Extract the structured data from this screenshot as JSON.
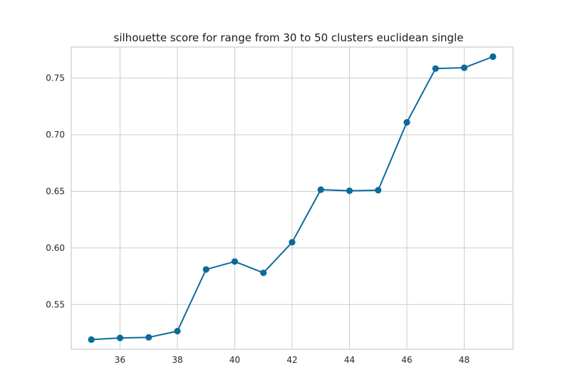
{
  "chart_data": {
    "type": "line",
    "title": "silhouette score for range from 30 to 50 clusters euclidean single",
    "xlabel": "",
    "ylabel": "",
    "x": [
      35,
      36,
      37,
      38,
      39,
      40,
      41,
      42,
      43,
      44,
      45,
      46,
      47,
      48,
      49
    ],
    "series": [
      {
        "values": [
          0.519,
          0.5205,
          0.521,
          0.5265,
          0.581,
          0.588,
          0.578,
          0.605,
          0.6515,
          0.6505,
          0.651,
          0.711,
          0.7585,
          0.7592,
          0.769
        ]
      }
    ],
    "xlim": [
      34.3,
      49.7
    ],
    "ylim": [
      0.5105,
      0.7775
    ],
    "xticks": [
      36,
      38,
      40,
      42,
      44,
      46,
      48
    ],
    "xtick_labels": [
      "36",
      "38",
      "40",
      "42",
      "44",
      "46",
      "48"
    ],
    "yticks": [
      0.55,
      0.6,
      0.65,
      0.7,
      0.75
    ],
    "ytick_labels": [
      "0.55",
      "0.60",
      "0.65",
      "0.70",
      "0.75"
    ],
    "grid": true,
    "line_color": "#0c6b9a"
  }
}
